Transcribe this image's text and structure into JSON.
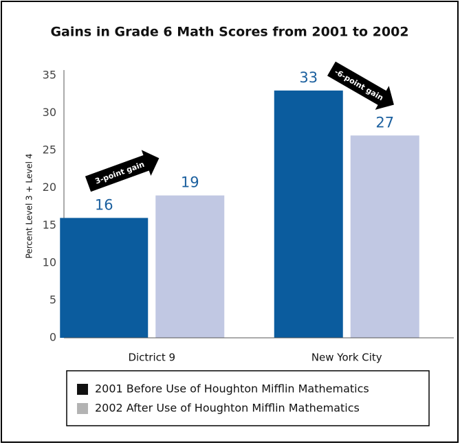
{
  "chart_data": {
    "type": "bar",
    "title": "Gains in Grade 6 Math Scores from 2001 to 2002",
    "y_label": "Percent Level 3 + Level 4",
    "categories": [
      "Dictrict 9",
      "New York City"
    ],
    "series": [
      {
        "name": "2001 Before Use of Houghton Mifflin Mathematics",
        "color": "#0b5c9e",
        "legend_color": "#111111",
        "values": [
          16,
          33
        ]
      },
      {
        "name": "2002 After Use of Houghton Mifflin Mathematics",
        "color": "#c1c8e3",
        "legend_color": "#b3b3b3",
        "values": [
          19,
          27
        ]
      }
    ],
    "ylim": [
      0,
      35
    ],
    "yticks": [
      0,
      5,
      10,
      15,
      20,
      25,
      30,
      35
    ],
    "annotations": [
      "3-point gain",
      "-6-point gain"
    ]
  }
}
